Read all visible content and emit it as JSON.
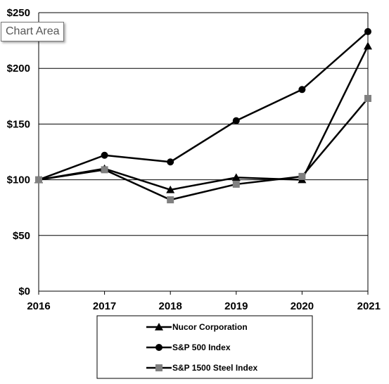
{
  "tooltip": "Chart Area",
  "chart_data": {
    "type": "line",
    "categories": [
      "2016",
      "2017",
      "2018",
      "2019",
      "2020",
      "2021"
    ],
    "ylim": [
      0,
      250
    ],
    "yticks": [
      "$0",
      "$50",
      "$100",
      "$150",
      "$200",
      "$250"
    ],
    "ytick_values": [
      0,
      50,
      100,
      150,
      200,
      250
    ],
    "grid": true,
    "legend_placement": "bottom",
    "series": [
      {
        "name": "Nucor Corporation",
        "values": [
          100,
          110,
          91,
          102,
          100,
          220
        ],
        "marker": "triangle",
        "color": "#000000"
      },
      {
        "name": "S&P 500 Index",
        "values": [
          100,
          122,
          116,
          153,
          181,
          233
        ],
        "marker": "circle",
        "color": "#000000"
      },
      {
        "name": "S&P 1500 Steel Index",
        "values": [
          100,
          109,
          82,
          96,
          103,
          173
        ],
        "marker": "square",
        "color": "#808080"
      }
    ]
  }
}
